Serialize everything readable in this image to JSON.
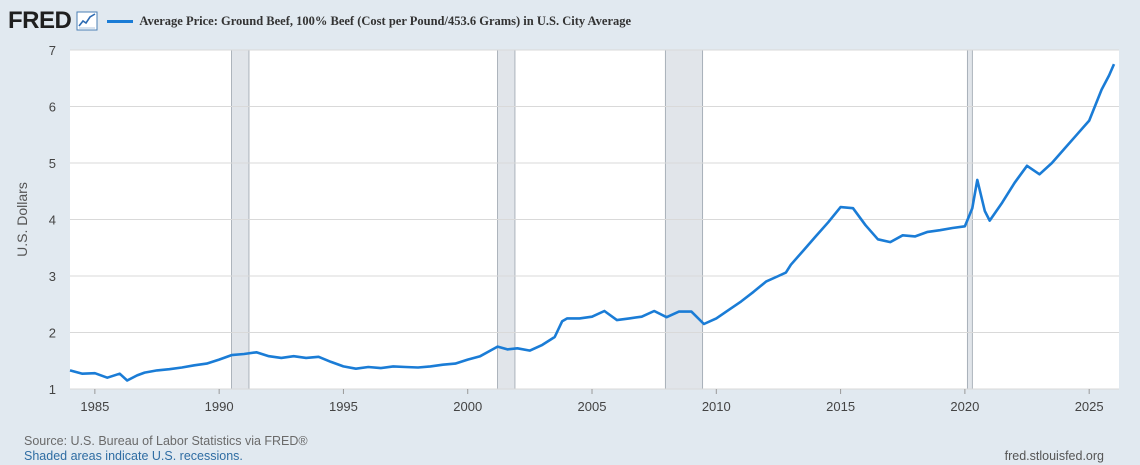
{
  "header": {
    "logo_text": "FRED",
    "logo_icon": "chart-trend-icon"
  },
  "colors": {
    "series": "#1a7cd6",
    "background": "#e1e9f0",
    "plot_background": "#ffffff",
    "recession": "#e1e5ea",
    "grid": "#d9d9d9"
  },
  "chart_data": {
    "type": "line",
    "title": "",
    "xlabel": "",
    "ylabel": "U.S. Dollars",
    "xlim": [
      1984.0,
      2026.2
    ],
    "ylim": [
      1,
      7
    ],
    "yticks": [
      1,
      2,
      3,
      4,
      5,
      6,
      7
    ],
    "xticks": [
      1985,
      1990,
      1995,
      2000,
      2005,
      2010,
      2015,
      2020,
      2025
    ],
    "grid": "horizontal",
    "legend_position": "top",
    "recessions": [
      [
        1990.5,
        1991.2
      ],
      [
        2001.2,
        2001.9
      ],
      [
        2007.95,
        2009.45
      ],
      [
        2020.1,
        2020.3
      ]
    ],
    "series": [
      {
        "name": "Average Price: Ground Beef, 100% Beef (Cost per Pound/453.6 Grams) in U.S. City Average",
        "x": [
          1984.0,
          1984.5,
          1985.0,
          1985.5,
          1986.0,
          1986.3,
          1986.7,
          1987.0,
          1987.5,
          1988.0,
          1988.5,
          1989.0,
          1989.5,
          1990.0,
          1990.5,
          1991.0,
          1991.5,
          1992.0,
          1992.5,
          1993.0,
          1993.5,
          1994.0,
          1994.5,
          1995.0,
          1995.5,
          1996.0,
          1996.5,
          1997.0,
          1997.5,
          1998.0,
          1998.5,
          1999.0,
          1999.5,
          2000.0,
          2000.5,
          2001.0,
          2001.2,
          2001.6,
          2002.0,
          2002.5,
          2003.0,
          2003.5,
          2003.8,
          2004.0,
          2004.5,
          2005.0,
          2005.5,
          2006.0,
          2006.5,
          2007.0,
          2007.5,
          2008.0,
          2008.5,
          2009.0,
          2009.5,
          2010.0,
          2010.5,
          2011.0,
          2011.5,
          2012.0,
          2012.5,
          2012.8,
          2013.0,
          2013.5,
          2014.0,
          2014.5,
          2015.0,
          2015.5,
          2016.0,
          2016.5,
          2017.0,
          2017.5,
          2018.0,
          2018.5,
          2019.0,
          2019.5,
          2020.0,
          2020.3,
          2020.5,
          2020.8,
          2021.0,
          2021.5,
          2022.0,
          2022.5,
          2023.0,
          2023.5,
          2024.0,
          2024.5,
          2025.0,
          2025.5,
          2025.8,
          2026.0
        ],
        "values": [
          1.33,
          1.27,
          1.28,
          1.2,
          1.27,
          1.15,
          1.24,
          1.29,
          1.33,
          1.35,
          1.38,
          1.42,
          1.45,
          1.52,
          1.6,
          1.62,
          1.65,
          1.58,
          1.55,
          1.58,
          1.55,
          1.57,
          1.48,
          1.4,
          1.36,
          1.39,
          1.37,
          1.4,
          1.39,
          1.38,
          1.4,
          1.43,
          1.45,
          1.52,
          1.58,
          1.7,
          1.75,
          1.7,
          1.72,
          1.68,
          1.78,
          1.92,
          2.2,
          2.25,
          2.25,
          2.28,
          2.38,
          2.22,
          2.25,
          2.28,
          2.38,
          2.27,
          2.37,
          2.37,
          2.15,
          2.25,
          2.4,
          2.55,
          2.72,
          2.9,
          3.0,
          3.06,
          3.2,
          3.45,
          3.7,
          3.95,
          4.22,
          4.2,
          3.9,
          3.65,
          3.6,
          3.72,
          3.7,
          3.78,
          3.81,
          3.85,
          3.88,
          4.2,
          4.7,
          4.15,
          3.98,
          4.3,
          4.65,
          4.95,
          4.8,
          5.0,
          5.25,
          5.5,
          5.75,
          6.3,
          6.55,
          6.75
        ]
      }
    ]
  },
  "footer": {
    "source": "Source: U.S. Bureau of Labor Statistics via FRED®",
    "note": "Shaded areas indicate U.S. recessions.",
    "url": "fred.stlouisfed.org"
  }
}
